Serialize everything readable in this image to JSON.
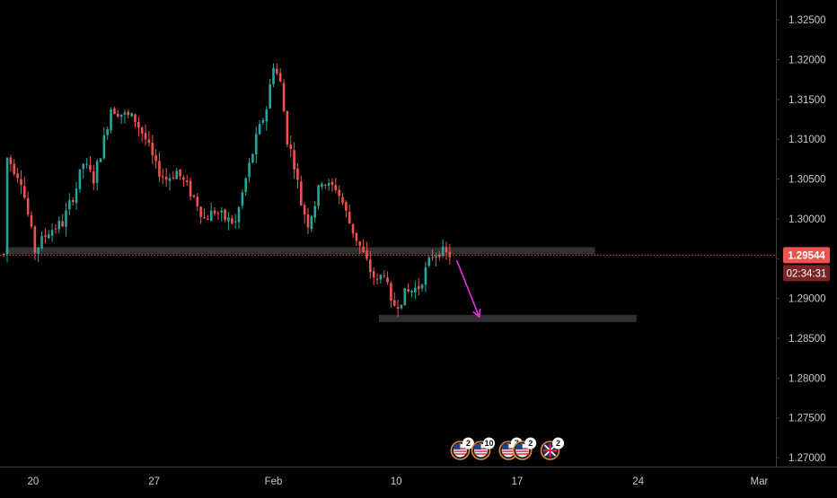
{
  "chart_data": {
    "type": "candlestick",
    "instrument_hint": "",
    "theme": {
      "background": "#000000",
      "up": "#26a69a",
      "down": "#ef5350",
      "axis_text": "#c8c8c8",
      "axis_line": "#3a3a3a",
      "zone": "#3a3a3a",
      "arrow": "#e233e0",
      "price_label_bg": "#ef5350",
      "price_label_text": "#ffffff"
    },
    "ylim": [
      1.2655,
      1.3275
    ],
    "y_ticks": [
      "1.32500",
      "1.32000",
      "1.31500",
      "1.31000",
      "1.30500",
      "1.30000",
      "1.29500",
      "1.29000",
      "1.28500",
      "1.28000",
      "1.27500",
      "1.27000"
    ],
    "x_ticks": [
      {
        "label": "20",
        "pos": 0.5
      },
      {
        "label": "27",
        "pos": 35.5
      },
      {
        "label": "Feb",
        "pos": 70
      },
      {
        "label": "10",
        "pos": 105.5
      },
      {
        "label": "17",
        "pos": 140.5
      },
      {
        "label": "24",
        "pos": 175.5
      },
      {
        "label": "Mar",
        "pos": 210.5
      }
    ],
    "last_price": {
      "value": "1.29544",
      "countdown": "02:34:31",
      "price": 1.29544
    },
    "zones": [
      {
        "price": 1.296,
        "from": -7.5,
        "to": 163
      },
      {
        "price": 1.2875,
        "from": 100.5,
        "to": 175
      }
    ],
    "arrow": {
      "from_idx": 123,
      "from_price": 1.2948,
      "to_idx": 129.5,
      "to_price": 1.2877
    },
    "events": [
      {
        "idx": 124,
        "icon": "us-flag-icon",
        "count": "2"
      },
      {
        "idx": 130,
        "icon": "us-flag-icon",
        "count": "10"
      },
      {
        "idx": 138,
        "icon": "us-flag-icon",
        "count": "7"
      },
      {
        "idx": 142,
        "icon": "us-flag-icon",
        "count": "2"
      },
      {
        "idx": 150,
        "icon": "uk-flag-icon",
        "count": "2"
      }
    ],
    "close_points": [
      [
        -7.5,
        1.308
      ],
      [
        -3,
        1.305
      ],
      [
        1,
        1.296
      ],
      [
        5,
        1.2985
      ],
      [
        9,
        1.2995
      ],
      [
        13,
        1.304
      ],
      [
        15,
        1.307
      ],
      [
        18,
        1.305
      ],
      [
        21,
        1.31
      ],
      [
        23,
        1.314
      ],
      [
        27,
        1.313
      ],
      [
        30,
        1.3125
      ],
      [
        33,
        1.31
      ],
      [
        36,
        1.3065
      ],
      [
        39,
        1.305
      ],
      [
        42,
        1.306
      ],
      [
        45,
        1.304
      ],
      [
        48,
        1.302
      ],
      [
        50,
        1.3
      ],
      [
        53,
        1.301
      ],
      [
        56,
        1.3
      ],
      [
        59,
        1.2995
      ],
      [
        62,
        1.305
      ],
      [
        65,
        1.31
      ],
      [
        68,
        1.314
      ],
      [
        70,
        1.3195
      ],
      [
        72,
        1.317
      ],
      [
        74,
        1.31
      ],
      [
        76,
        1.307
      ],
      [
        78,
        1.302
      ],
      [
        80,
        1.2995
      ],
      [
        82,
        1.302
      ],
      [
        84,
        1.305
      ],
      [
        86,
        1.304
      ],
      [
        88,
        1.304
      ],
      [
        90,
        1.302
      ],
      [
        92,
        1.2995
      ],
      [
        94,
        1.2975
      ],
      [
        96,
        1.2955
      ],
      [
        98,
        1.2935
      ],
      [
        100,
        1.292
      ],
      [
        102,
        1.2935
      ],
      [
        104,
        1.289
      ],
      [
        106,
        1.2895
      ],
      [
        108,
        1.2905
      ],
      [
        110,
        1.291
      ],
      [
        112,
        1.2915
      ],
      [
        114,
        1.2935
      ],
      [
        116,
        1.2955
      ],
      [
        118,
        1.296
      ],
      [
        120,
        1.2955
      ]
    ]
  }
}
